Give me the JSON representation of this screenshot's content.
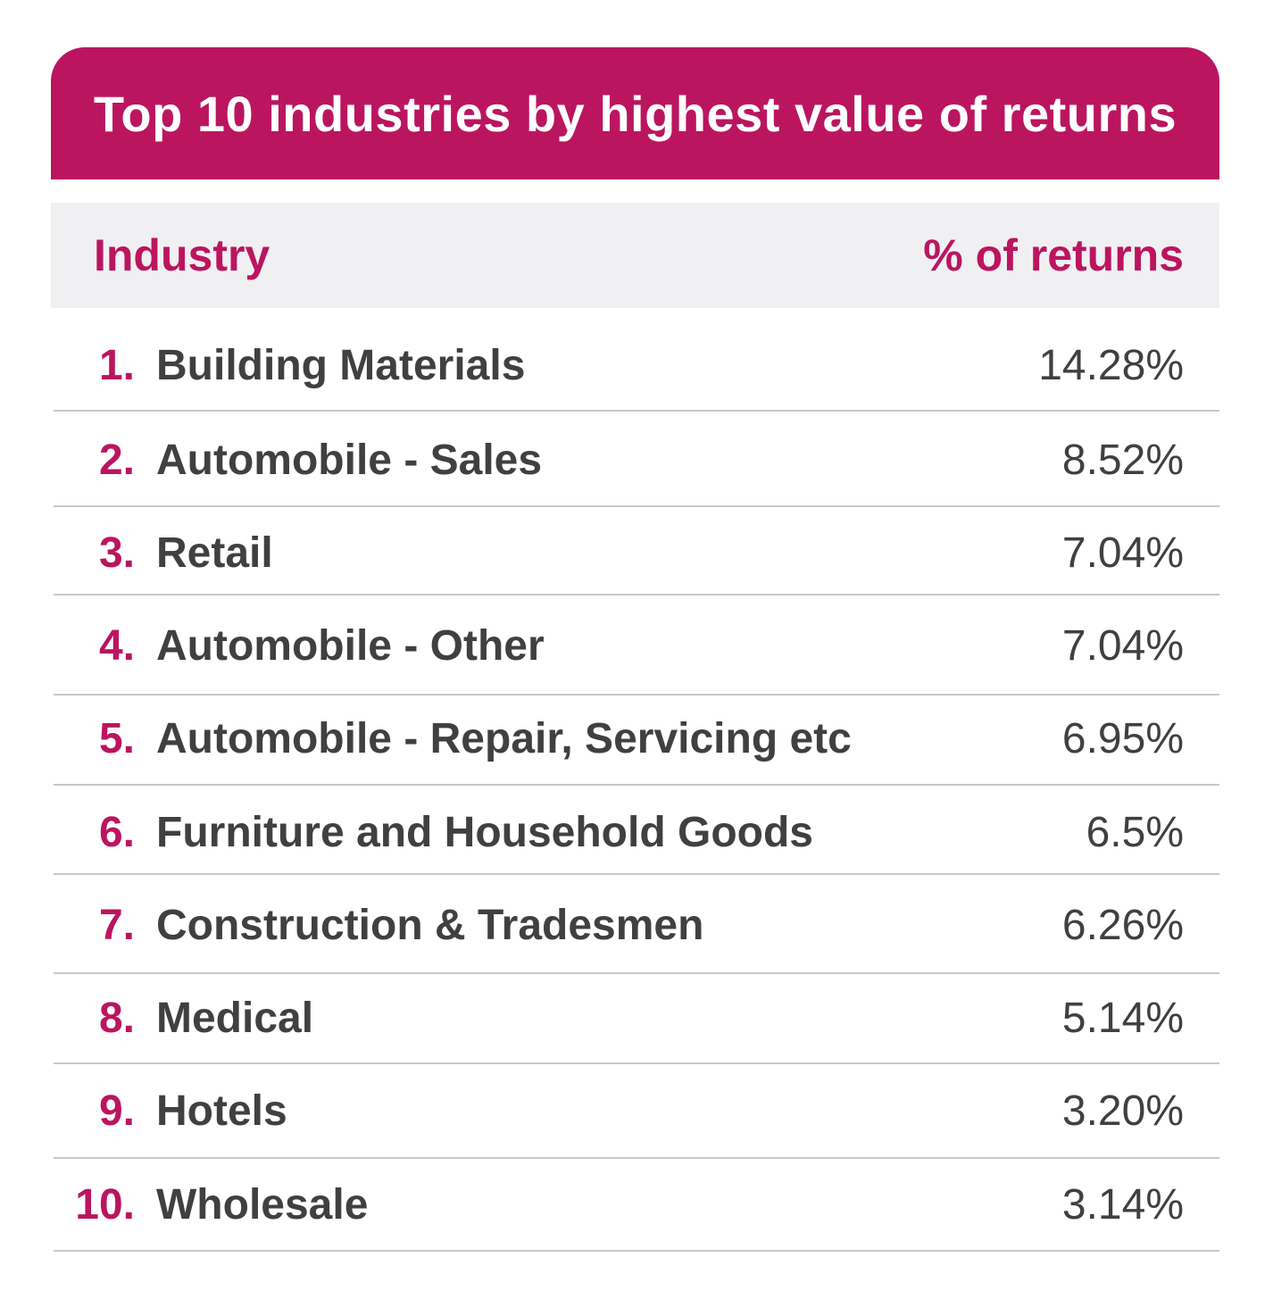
{
  "chart_data": {
    "type": "table",
    "title": "Top 10 industries by highest value of returns",
    "columns": [
      "Industry",
      "% of returns"
    ],
    "rows": [
      {
        "rank": "1.",
        "industry": "Building Materials",
        "value": "14.28%",
        "percent": 14.28
      },
      {
        "rank": "2.",
        "industry": "Automobile - Sales",
        "value": "8.52%",
        "percent": 8.52
      },
      {
        "rank": "3.",
        "industry": "Retail",
        "value": "7.04%",
        "percent": 7.04
      },
      {
        "rank": "4.",
        "industry": "Automobile - Other",
        "value": "7.04%",
        "percent": 7.04
      },
      {
        "rank": "5.",
        "industry": "Automobile - Repair, Servicing etc",
        "value": "6.95%",
        "percent": 6.95
      },
      {
        "rank": "6.",
        "industry": "Furniture and Household Goods",
        "value": "6.5%",
        "percent": 6.5
      },
      {
        "rank": "7.",
        "industry": "Construction & Tradesmen",
        "value": "6.26%",
        "percent": 6.26
      },
      {
        "rank": "8.",
        "industry": "Medical",
        "value": "5.14%",
        "percent": 5.14
      },
      {
        "rank": "9.",
        "industry": "Hotels",
        "value": "3.20%",
        "percent": 3.2
      },
      {
        "rank": "10.",
        "industry": "Wholesale",
        "value": "3.14%",
        "percent": 3.14
      }
    ]
  },
  "colors": {
    "accent": "#bb1560",
    "text": "#404042",
    "header_bg": "#f0f0f2",
    "divider": "#c8c8c8"
  }
}
